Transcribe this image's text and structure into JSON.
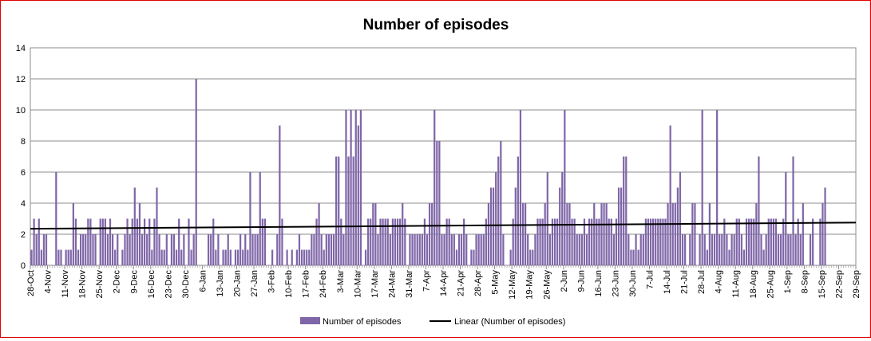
{
  "chart_data": {
    "type": "bar",
    "title": "Number of episodes",
    "ylim": [
      0,
      14
    ],
    "yticks": [
      "0",
      "2",
      "4",
      "6",
      "8",
      "10",
      "12",
      "14"
    ],
    "grid": "horizontal",
    "legend_position": "bottom",
    "x_start": "28-Oct",
    "x_end": "29-Sep",
    "xticks": [
      "28-Oct",
      "4-Nov",
      "11-Nov",
      "18-Nov",
      "25-Nov",
      "2-Dec",
      "9-Dec",
      "16-Dec",
      "23-Dec",
      "30-Dec",
      "6-Jan",
      "13-Jan",
      "20-Jan",
      "27-Jan",
      "3-Feb",
      "10-Feb",
      "17-Feb",
      "24-Feb",
      "3-Mar",
      "10-Mar",
      "17-Mar",
      "24-Mar",
      "31-Mar",
      "7-Apr",
      "14-Apr",
      "21-Apr",
      "28-Apr",
      "5-May",
      "12-May",
      "19-May",
      "26-May",
      "2-Jun",
      "9-Jun",
      "16-Jun",
      "23-Jun",
      "30-Jun",
      "7-Jul",
      "14-Jul",
      "21-Jul",
      "28-Jul",
      "4-Aug",
      "11-Aug",
      "18-Aug",
      "25-Aug",
      "1-Sep",
      "8-Sep",
      "15-Sep",
      "22-Sep",
      "29-Sep"
    ],
    "series": [
      {
        "name": "Number of episodes",
        "color": "#7f66a8",
        "values": [
          1,
          3,
          2,
          3,
          1,
          2,
          2,
          0,
          0,
          0,
          6,
          1,
          1,
          0,
          1,
          1,
          1,
          4,
          3,
          1,
          2,
          2,
          2,
          3,
          3,
          2,
          2,
          0,
          3,
          3,
          3,
          2,
          3,
          2,
          1,
          2,
          0,
          1,
          2,
          3,
          2,
          3,
          5,
          3,
          4,
          2,
          3,
          2,
          3,
          1,
          3,
          5,
          2,
          1,
          1,
          2,
          0,
          2,
          2,
          1,
          3,
          1,
          2,
          0,
          3,
          1,
          2,
          12,
          0,
          0,
          0,
          0,
          2,
          2,
          3,
          1,
          2,
          0,
          1,
          1,
          2,
          1,
          0,
          1,
          1,
          2,
          1,
          2,
          1,
          6,
          2,
          2,
          2,
          6,
          3,
          3,
          0,
          0,
          1,
          0,
          2,
          9,
          3,
          0,
          1,
          0,
          1,
          0,
          1,
          2,
          1,
          1,
          1,
          1,
          2,
          2,
          3,
          4,
          2,
          1,
          2,
          2,
          2,
          2,
          7,
          7,
          3,
          2,
          10,
          7,
          10,
          7,
          10,
          9,
          10,
          0,
          1,
          3,
          3,
          4,
          4,
          2,
          3,
          3,
          3,
          3,
          2,
          3,
          3,
          3,
          3,
          4,
          3,
          0,
          2,
          2,
          2,
          2,
          2,
          2,
          3,
          2,
          4,
          4,
          10,
          8,
          8,
          2,
          2,
          3,
          3,
          2,
          2,
          1,
          2,
          2,
          3,
          2,
          0,
          1,
          1,
          2,
          2,
          2,
          2,
          3,
          4,
          5,
          5,
          6,
          7,
          8,
          2,
          0,
          0,
          1,
          3,
          5,
          7,
          10,
          4,
          4,
          2,
          1,
          1,
          2,
          3,
          3,
          3,
          4,
          6,
          2,
          3,
          3,
          3,
          5,
          6,
          10,
          4,
          4,
          3,
          3,
          2,
          2,
          2,
          3,
          2,
          3,
          3,
          4,
          3,
          3,
          4,
          4,
          4,
          3,
          3,
          2,
          3,
          5,
          5,
          7,
          7,
          2,
          1,
          1,
          2,
          1,
          2,
          2,
          3,
          3,
          3,
          3,
          3,
          3,
          3,
          3,
          3,
          4,
          9,
          4,
          4,
          5,
          6,
          2,
          2,
          0,
          2,
          4,
          4,
          0,
          2,
          10,
          2,
          1,
          4,
          2,
          2,
          10,
          2,
          2,
          3,
          2,
          1,
          2,
          2,
          3,
          3,
          2,
          1,
          3,
          3,
          3,
          3,
          4,
          7,
          2,
          1,
          2,
          3,
          3,
          3,
          3,
          2,
          2,
          3,
          6,
          2,
          2,
          7,
          2,
          3,
          2,
          4,
          0,
          0,
          2,
          3,
          0,
          0,
          3,
          4,
          5
        ]
      }
    ],
    "trendline": {
      "name": "Linear (Number of episodes)",
      "color": "#000000",
      "start": 2.35,
      "end": 2.75
    }
  }
}
